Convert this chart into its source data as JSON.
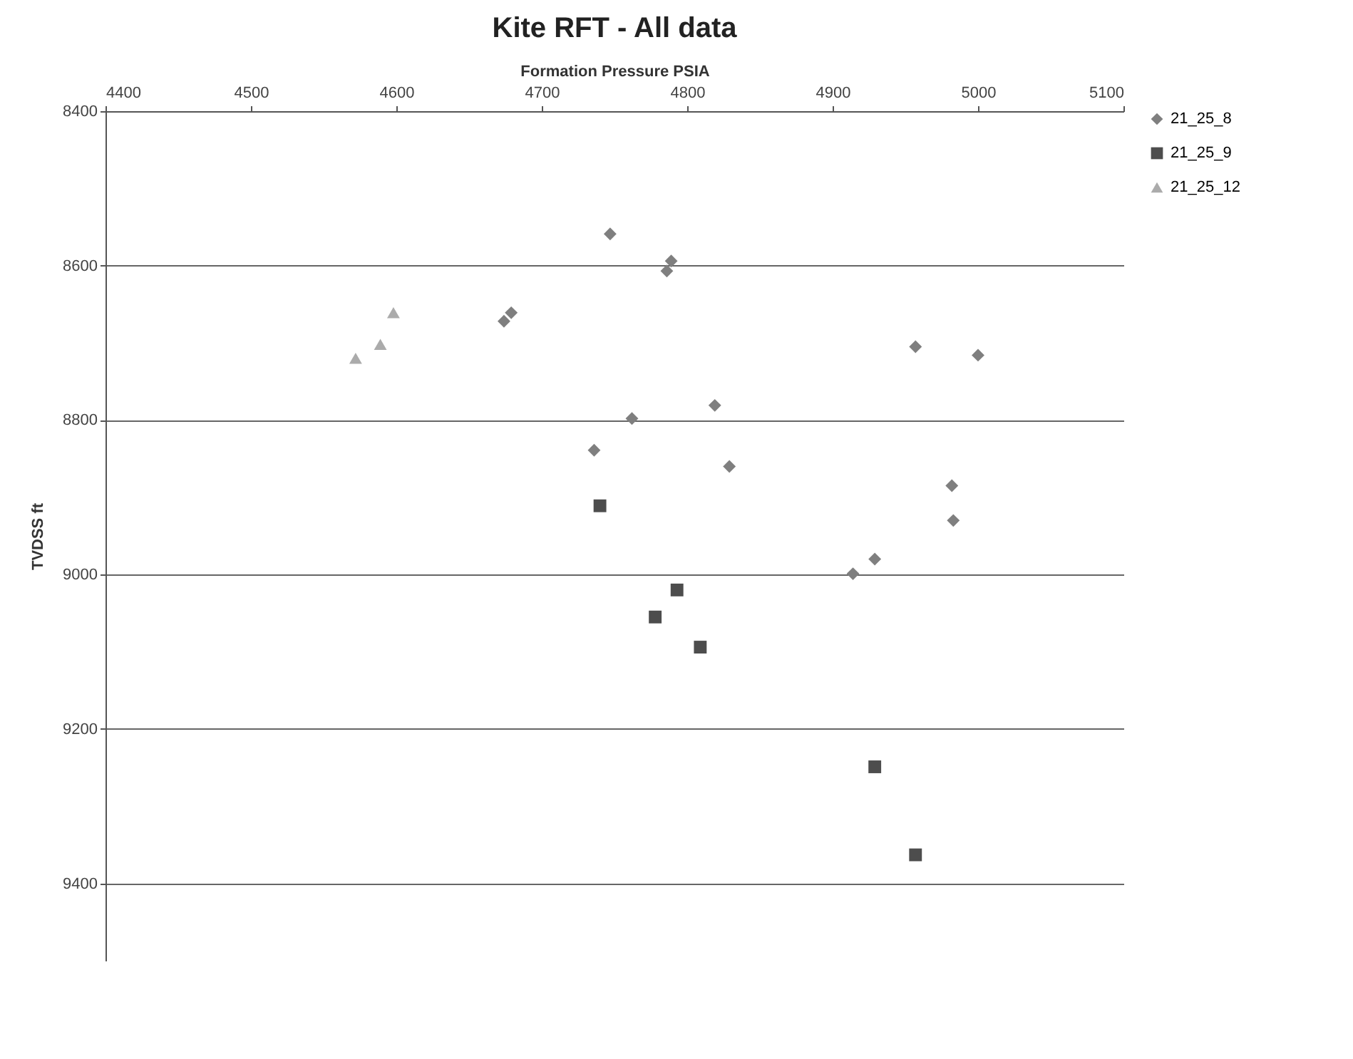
{
  "chart_data": {
    "type": "scatter",
    "title": "Kite RFT - All data",
    "xlabel": "Formation Pressure PSIA",
    "ylabel": "TVDSS ft",
    "xlim": [
      4400,
      5100
    ],
    "xticks": [
      4400,
      4500,
      4600,
      4700,
      4800,
      4900,
      5000,
      5100
    ],
    "ylim": [
      9500,
      8400
    ],
    "yticks": [
      8400,
      8600,
      8800,
      9000,
      9200,
      9400
    ],
    "grid": "y",
    "legend": "right",
    "series": [
      {
        "name": "21_25_8",
        "color": "#7f7f7f",
        "marker": "diamond",
        "x": [
          4747,
          4789,
          4786,
          4679,
          4674,
          4762,
          4819,
          4736,
          4829,
          4957,
          5000,
          4982,
          4983,
          4929,
          4914
        ],
        "values": [
          8559,
          8594,
          8607,
          8661,
          8672,
          8798,
          8781,
          8839,
          8860,
          8705,
          8716,
          8885,
          8930,
          8980,
          8999
        ]
      },
      {
        "name": "21_25_9",
        "color": "#4d4d4d",
        "marker": "square",
        "x": [
          4740,
          4793,
          4778,
          4809,
          4929,
          4957
        ],
        "values": [
          8911,
          9020,
          9055,
          9094,
          9249,
          9363
        ]
      },
      {
        "name": "21_25_12",
        "color": "#ababab",
        "marker": "triangle",
        "x": [
          4598,
          4589,
          4572
        ],
        "values": [
          8661,
          8702,
          8720
        ]
      }
    ]
  }
}
